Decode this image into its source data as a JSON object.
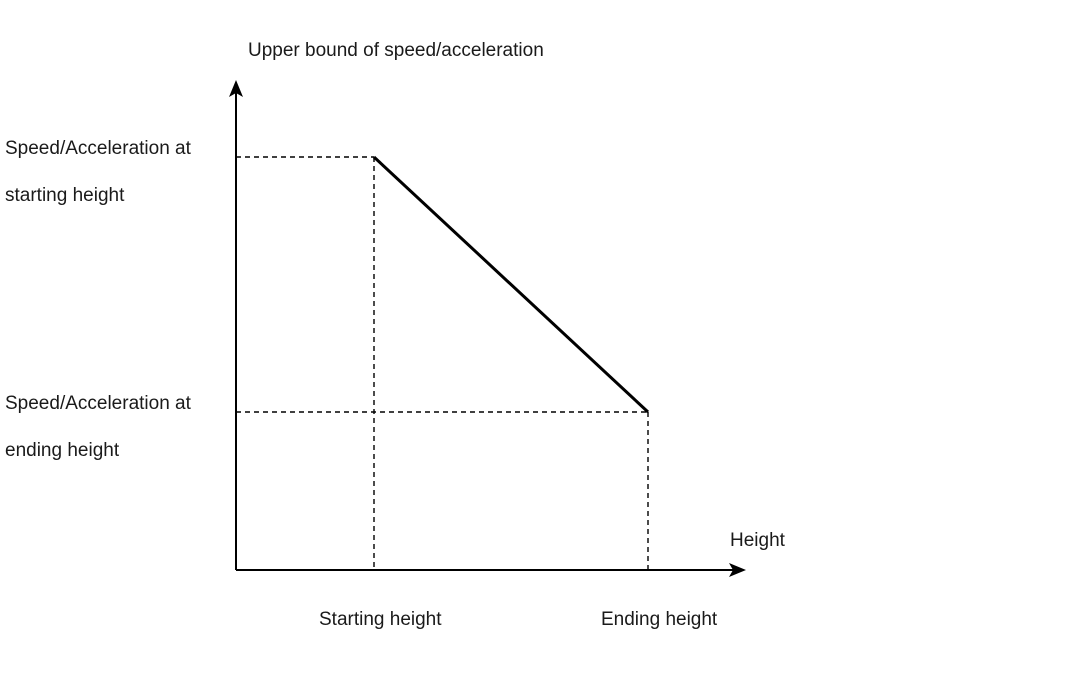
{
  "diagram": {
    "y_axis_title": "Upper bound of speed/acceleration",
    "x_axis_title": "Height",
    "y_labels": {
      "start_line1": "Speed/Acceleration at",
      "start_line2": "starting height",
      "end_line1": "Speed/Acceleration at",
      "end_line2": "ending height"
    },
    "x_labels": {
      "start": "Starting height",
      "end": "Ending height"
    },
    "colors": {
      "line": "#000000",
      "text": "#1a1a1a",
      "background": "#ffffff"
    }
  }
}
